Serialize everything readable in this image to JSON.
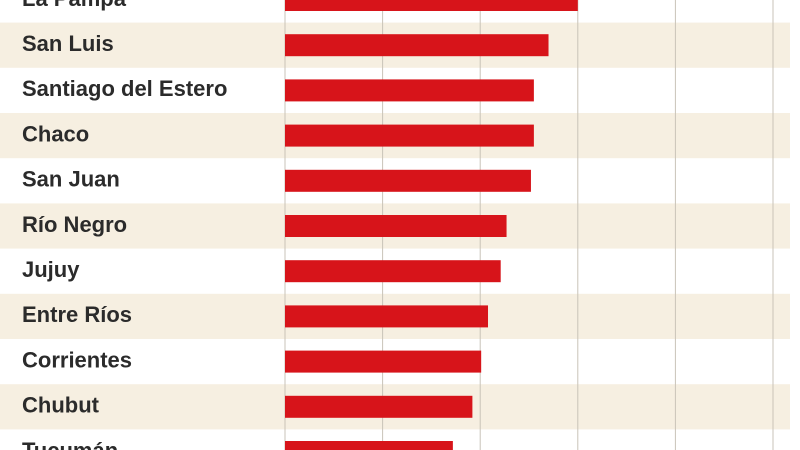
{
  "chart_data": {
    "type": "bar",
    "orientation": "horizontal",
    "categories": [
      "La Pampa",
      "San Luis",
      "Santiago del Estero",
      "Chaco",
      "San Juan",
      "Río Negro",
      "Jujuy",
      "Entre Ríos",
      "Corrientes",
      "Chubut",
      "Tucumán"
    ],
    "values": [
      3.0,
      2.7,
      2.55,
      2.55,
      2.52,
      2.27,
      2.21,
      2.08,
      2.01,
      1.92,
      1.72
    ],
    "color": "#d7141a",
    "stripe_color": "#f6efe1",
    "grid_color": "#c9c3b8",
    "xlim": [
      0,
      5
    ],
    "xticks": [
      0,
      1,
      2,
      3,
      4,
      5
    ],
    "grid": true
  }
}
